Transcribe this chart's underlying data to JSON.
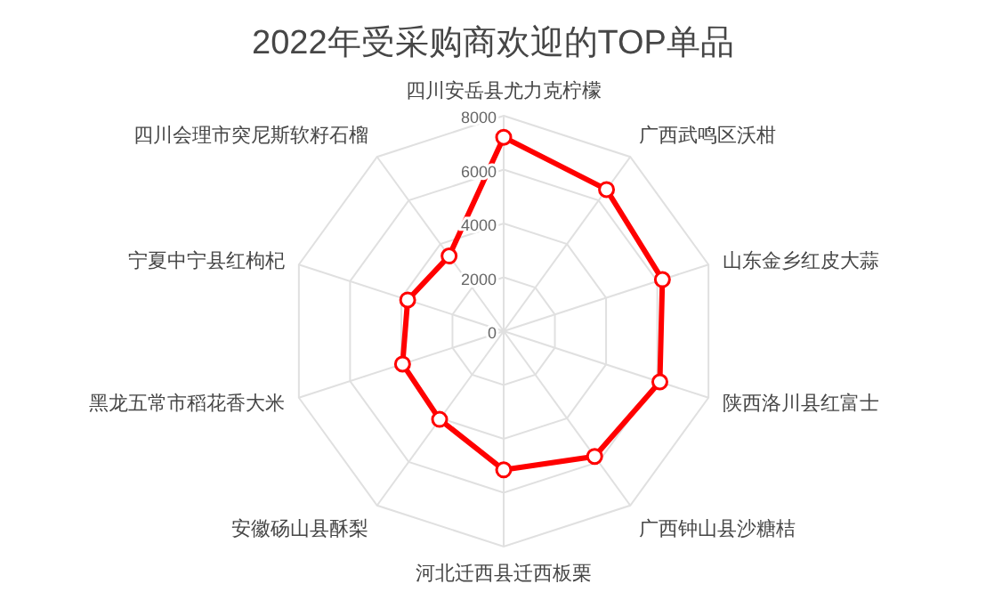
{
  "chart_data": {
    "type": "radar",
    "title": "2022年受采购商欢迎的TOP单品",
    "categories": [
      "四川安岳县尤力克柠檬",
      "广西武鸣区沃柑",
      "山东金乡红皮大蒜",
      "陕西洛川县红富士",
      "广西钟山县沙糖桔",
      "河北迁西县迁西板栗",
      "安徽砀山县酥梨",
      "黑龙五常市稻花香大米",
      "宁夏中宁县红枸杞",
      "四川会理市突尼斯软籽石榴"
    ],
    "series": [
      {
        "color": "#ff0000",
        "values": [
          7200,
          6500,
          6200,
          6100,
          5750,
          5150,
          4050,
          3950,
          3750,
          3450
        ]
      }
    ],
    "ylim": [
      0,
      8000
    ],
    "yticks": [
      0,
      2000,
      4000,
      6000,
      8000
    ],
    "grid": true,
    "marker": "circle",
    "line_style": "solid"
  }
}
